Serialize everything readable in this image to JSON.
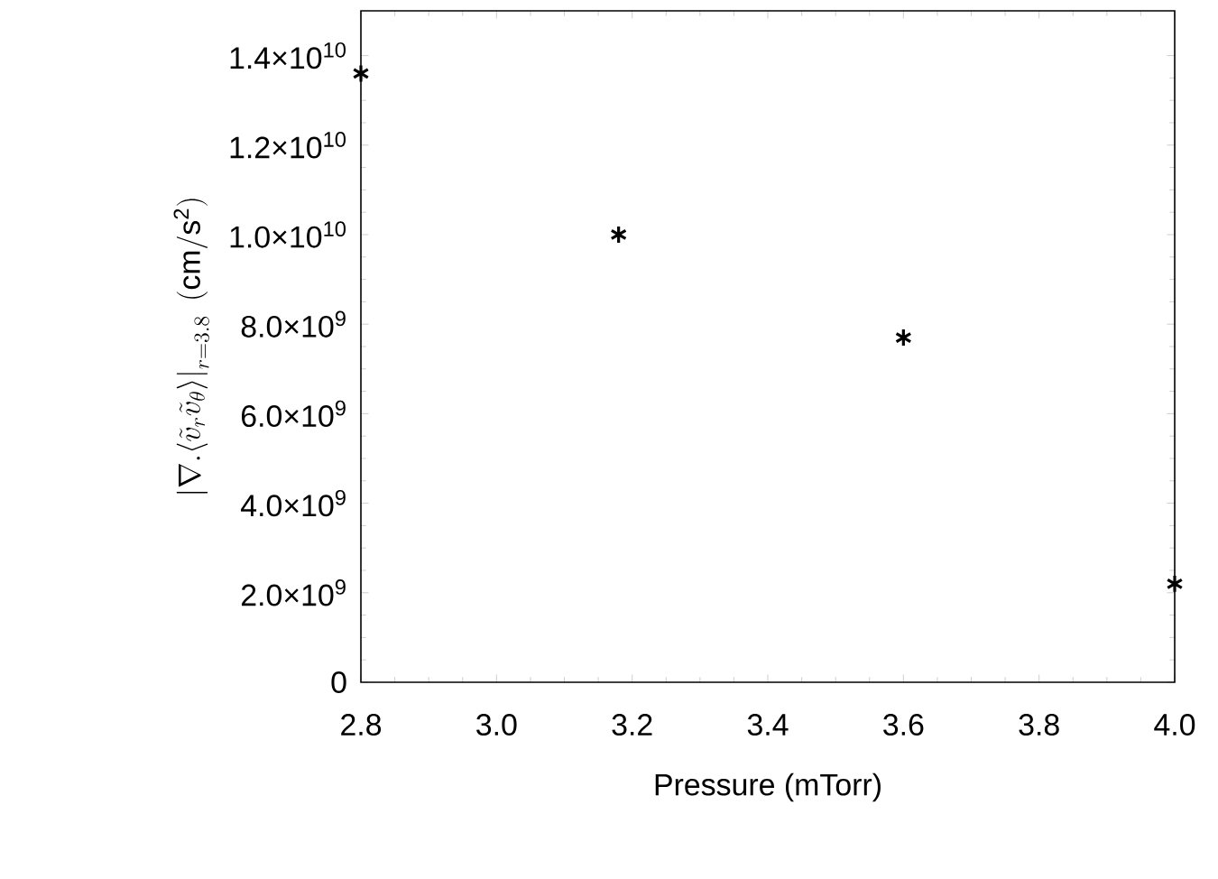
{
  "chart_data": {
    "type": "scatter",
    "xlabel": "Pressure (mTorr)",
    "ylabel": "\\left|\\nabla . \\langle \\tilde{v}_r \\tilde{v}_\\theta \\rangle\\right|_{r=3.8}\\ (\\mathrm{cm/s^2})",
    "x": [
      2.8,
      3.18,
      3.6,
      4.0
    ],
    "series": [
      {
        "color": "#000000",
        "values": [
          13600000000.0,
          10000000000.0,
          7700000000.0,
          2200000000.0
        ]
      }
    ],
    "xlim": [
      2.8,
      4.0
    ],
    "xticks": [
      {
        "value": 2.8,
        "label": "2.8"
      },
      {
        "value": 3.0,
        "label": "3.0"
      },
      {
        "value": 3.2,
        "label": "3.2"
      },
      {
        "value": 3.4,
        "label": "3.4"
      },
      {
        "value": 3.6,
        "label": "3.6"
      },
      {
        "value": 3.8,
        "label": "3.8"
      },
      {
        "value": 4.0,
        "label": "4.0"
      }
    ],
    "ylim": [
      0,
      15000000000.0
    ],
    "yticks": [
      {
        "value": 0,
        "label": "0"
      },
      {
        "value": 2000000000.0,
        "label": "2.0×10$^{9}$"
      },
      {
        "value": 4000000000.0,
        "label": "4.0×10$^{9}$"
      },
      {
        "value": 6000000000.0,
        "label": "6.0×10$^{9}$"
      },
      {
        "value": 8000000000.0,
        "label": "8.0×10$^{9}$"
      },
      {
        "value": 10000000000.0,
        "label": "1.0×10$^{10}$"
      },
      {
        "value": 12000000000.0,
        "label": "1.2×10$^{10}$"
      },
      {
        "value": 14000000000.0,
        "label": "1.4×10$^{10}$"
      }
    ],
    "marker": "cross",
    "grid": false
  }
}
